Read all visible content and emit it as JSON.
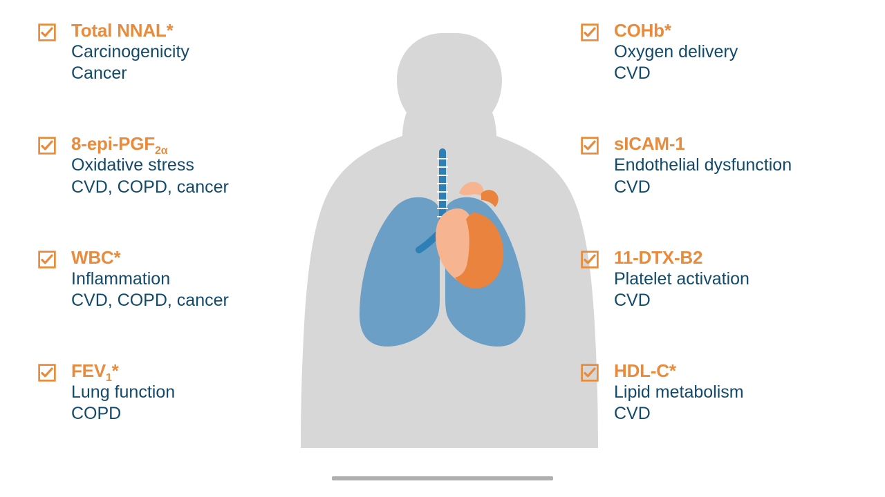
{
  "colors": {
    "accent": "#e98b3c",
    "text": "#124a6b",
    "torso": "#d7d7d7",
    "lungs": "#6b9fc6",
    "heartLight": "#f6b490",
    "heartDark": "#e9833e",
    "trachea": "#2d7fb5",
    "background": "#ffffff"
  },
  "left": [
    {
      "title": "Total NNAL*",
      "mech": "Carcinogenicity",
      "disease": "Cancer"
    },
    {
      "titleHtml": "8-epi-PGF<sub>2α</sub>",
      "mech": "Oxidative stress",
      "disease": "CVD, COPD, cancer"
    },
    {
      "title": "WBC*",
      "mech": "Inflammation",
      "disease": "CVD, COPD, cancer"
    },
    {
      "titleHtml": "FEV<sub>1</sub>*",
      "mech": "Lung function",
      "disease": "COPD"
    }
  ],
  "right": [
    {
      "title": "COHb*",
      "mech": "Oxygen delivery",
      "disease": "CVD"
    },
    {
      "title": "sICAM-1",
      "mech": "Endothelial dysfunction",
      "disease": "CVD"
    },
    {
      "title": "11-DTX-B2",
      "mech": "Platelet activation",
      "disease": "CVD"
    },
    {
      "title": "HDL-C*",
      "mech": "Lipid metabolism",
      "disease": "CVD"
    }
  ]
}
